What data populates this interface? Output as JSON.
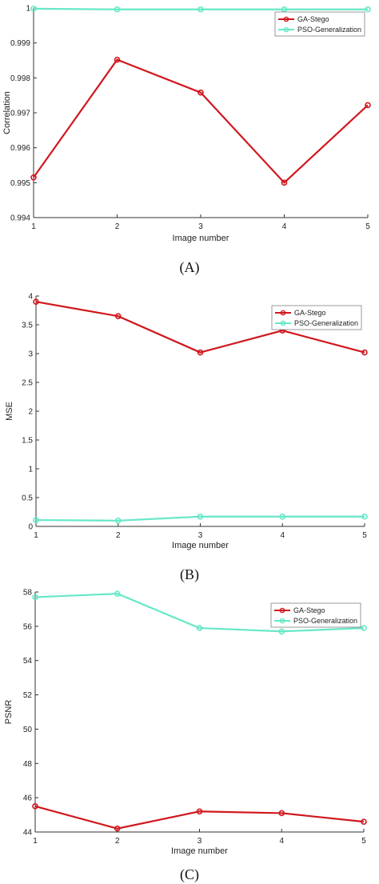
{
  "chart_data": [
    {
      "type": "line",
      "panel_label": "(A)",
      "x": [
        1,
        2,
        3,
        4,
        5
      ],
      "xticks": [
        "1",
        "2",
        "3",
        "4",
        "5"
      ],
      "xlabel": "Image number",
      "ylabel": "Correlation",
      "ylim": [
        0.994,
        1
      ],
      "yticks": [
        "0.994",
        "0.995",
        "0.996",
        "0.997",
        "0.998",
        "0.999",
        "1"
      ],
      "grid": false,
      "legend": "top-right",
      "series": [
        {
          "name": "GA-Stego",
          "color": "#d0181e",
          "values": [
            0.99515,
            0.99852,
            0.99758,
            0.995,
            0.99722
          ]
        },
        {
          "name": "PSO-Generalization",
          "color": "#66e8c8",
          "values": [
            0.99998,
            0.99996,
            0.99996,
            0.99996,
            0.99996
          ]
        }
      ]
    },
    {
      "type": "line",
      "panel_label": "(B)",
      "x": [
        1,
        2,
        3,
        4,
        5
      ],
      "xticks": [
        "1",
        "2",
        "3",
        "4",
        "5"
      ],
      "xlabel": "Image number",
      "ylabel": "MSE",
      "ylim": [
        0,
        4
      ],
      "yticks": [
        "0",
        "0.5",
        "1",
        "1.5",
        "2",
        "2.5",
        "3",
        "3.5",
        "4"
      ],
      "grid": false,
      "legend": "top-right",
      "series": [
        {
          "name": "GA-Stego",
          "color": "#d0181e",
          "values": [
            3.9,
            3.65,
            3.02,
            3.4,
            3.02
          ]
        },
        {
          "name": "PSO-Generalization",
          "color": "#66e8c8",
          "values": [
            0.11,
            0.1,
            0.17,
            0.17,
            0.17
          ]
        }
      ]
    },
    {
      "type": "line",
      "panel_label": "(C)",
      "x": [
        1,
        2,
        3,
        4,
        5
      ],
      "xticks": [
        "1",
        "2",
        "3",
        "4",
        "5"
      ],
      "xlabel": "Image number",
      "ylabel": "PSNR",
      "ylim": [
        44,
        58
      ],
      "yticks": [
        "44",
        "46",
        "48",
        "50",
        "52",
        "54",
        "56",
        "58"
      ],
      "grid": false,
      "legend": "top-right",
      "series": [
        {
          "name": "GA-Stego",
          "color": "#d0181e",
          "values": [
            45.5,
            44.2,
            45.2,
            45.1,
            44.6
          ]
        },
        {
          "name": "PSO-Generalization",
          "color": "#66e8c8",
          "values": [
            57.7,
            57.9,
            55.9,
            55.7,
            55.9
          ]
        }
      ]
    }
  ]
}
